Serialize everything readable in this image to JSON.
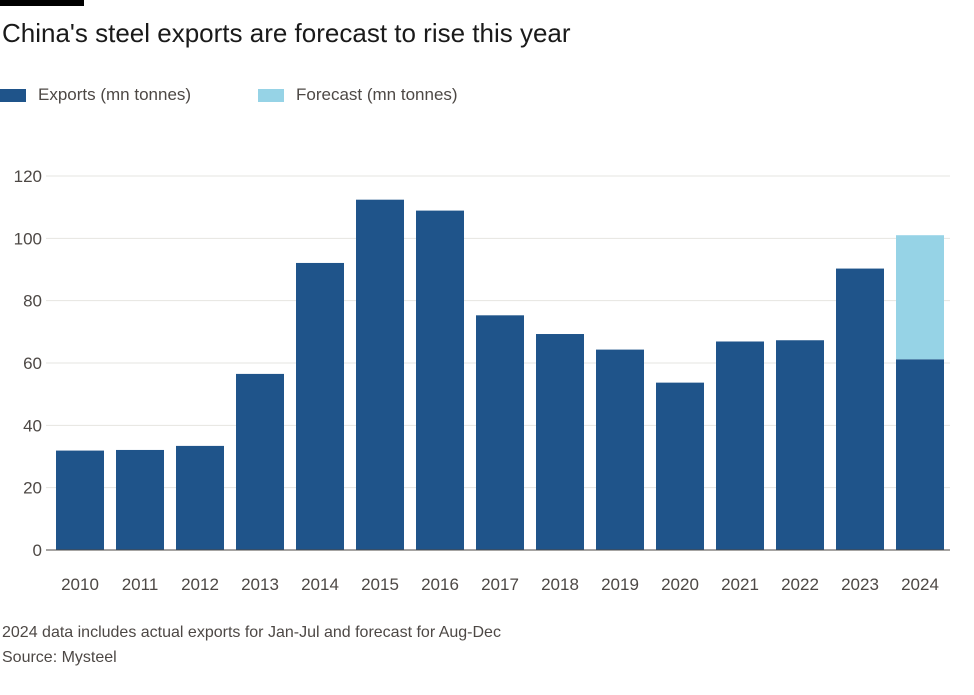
{
  "header": {
    "title": "China's steel exports are forecast to rise this year"
  },
  "legend": {
    "items": [
      {
        "label": "Exports (mn tonnes)",
        "color": "#1f548a"
      },
      {
        "label": "Forecast (mn tonnes)",
        "color": "#96d3e6"
      }
    ]
  },
  "chart_data": {
    "type": "bar",
    "stacked": true,
    "title": "China's steel exports are forecast to rise this year",
    "xlabel": "",
    "ylabel": "",
    "ylim": [
      0,
      120
    ],
    "yticks": [
      0,
      20,
      40,
      60,
      80,
      100,
      120
    ],
    "grid": true,
    "legend_position": "top-left",
    "categories": [
      "2010",
      "2011",
      "2012",
      "2013",
      "2014",
      "2015",
      "2016",
      "2017",
      "2018",
      "2019",
      "2020",
      "2021",
      "2022",
      "2023",
      "2024"
    ],
    "series": [
      {
        "name": "Exports (mn tonnes)",
        "color": "#1f548a",
        "values": [
          31.9,
          32.1,
          33.4,
          56.5,
          92.1,
          112.4,
          108.9,
          75.3,
          69.3,
          64.3,
          53.7,
          66.9,
          67.3,
          90.3,
          61.2
        ]
      },
      {
        "name": "Forecast (mn tonnes)",
        "color": "#96d3e6",
        "values": [
          0,
          0,
          0,
          0,
          0,
          0,
          0,
          0,
          0,
          0,
          0,
          0,
          0,
          0,
          39.8
        ]
      }
    ]
  },
  "footer": {
    "note": "2024 data includes actual exports for Jan-Jul and forecast for Aug-Dec",
    "source": "Source: Mysteel"
  }
}
